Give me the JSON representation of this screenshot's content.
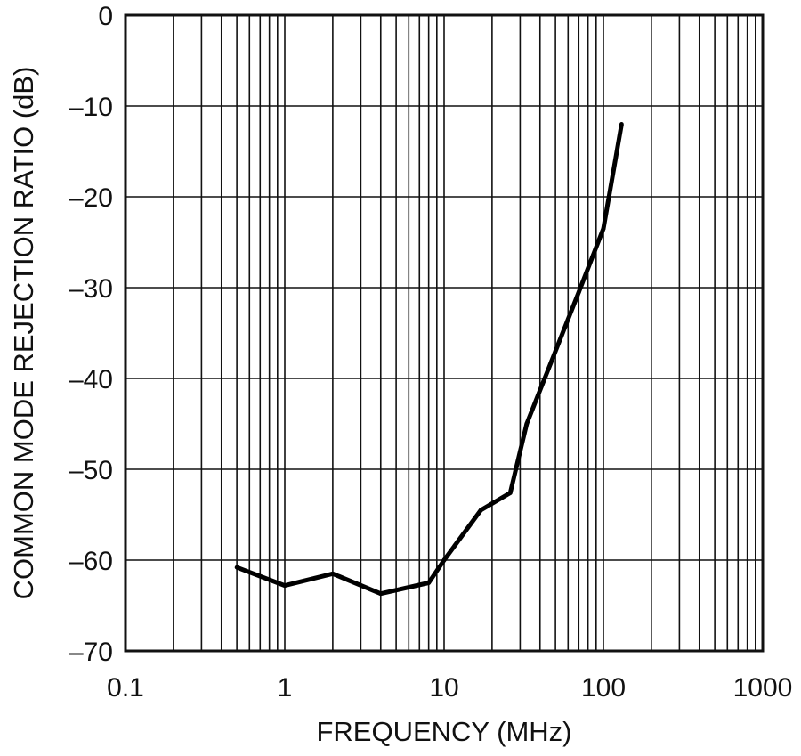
{
  "chart_data": {
    "type": "line",
    "title": "",
    "xlabel": "FREQUENCY (MHz)",
    "ylabel": "COMMON MODE REJECTION RATIO (dB)",
    "x_scale": "log",
    "xlim": [
      0.1,
      1000
    ],
    "ylim": [
      -70,
      0
    ],
    "grid": true,
    "x_tick_labels": [
      "0.1",
      "1",
      "10",
      "100",
      "1000"
    ],
    "y_tick_labels": [
      "0",
      "–10",
      "–20",
      "–30",
      "–40",
      "–50",
      "–60",
      "–70"
    ],
    "series": [
      {
        "x": [
          0.5,
          1,
          2,
          4,
          8,
          10,
          17,
          26,
          33,
          50,
          70,
          100,
          130
        ],
        "y": [
          -60.8,
          -62.8,
          -61.5,
          -63.7,
          -62.5,
          -60,
          -54.5,
          -52.6,
          -45,
          -37,
          -30.5,
          -23.5,
          -12
        ]
      }
    ]
  }
}
